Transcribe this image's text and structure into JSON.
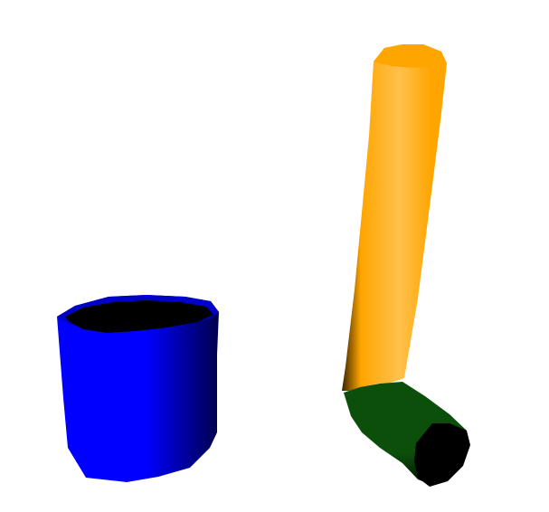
{
  "scene": {
    "background": "#ffffff",
    "objects": [
      {
        "name": "blue-cylinder-cup",
        "body_color": "#0000ff",
        "shadow_color": "#00004a",
        "rim_color": "#0000c8",
        "interior_color": "#000000"
      },
      {
        "name": "orange-tube",
        "body_color": "#ffa500",
        "highlight_color": "#ffc14d",
        "shadow_color": "#3a2400"
      },
      {
        "name": "green-tube-segment",
        "body_color": "#0b4f0b",
        "shadow_color": "#021402",
        "end_cap_color": "#000000"
      }
    ]
  }
}
